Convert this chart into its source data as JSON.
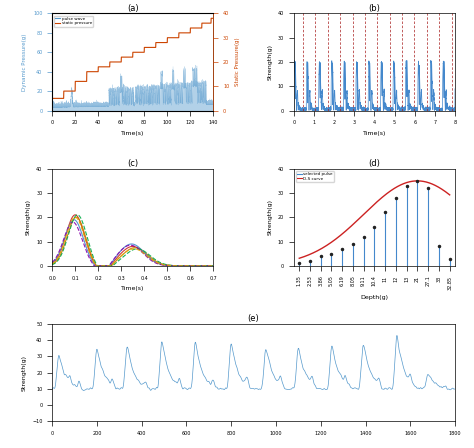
{
  "fig_width": 4.74,
  "fig_height": 4.48,
  "dpi": 100,
  "background": "#ffffff",
  "subplot_a": {
    "title": "(a)",
    "xlabel": "Time(s)",
    "ylabel_left": "Dynamic Pressure(g)",
    "ylabel_right": "Static Pressure(g)",
    "xlim": [
      0,
      140
    ],
    "ylim_left": [
      0,
      100
    ],
    "ylim_right": [
      0,
      40
    ],
    "yticks_left": [
      0,
      20,
      40,
      60,
      80,
      100
    ],
    "yticks_right": [
      0,
      10,
      20,
      30,
      40
    ],
    "xticks": [
      0,
      20,
      40,
      60,
      80,
      100,
      120,
      140
    ],
    "legend": [
      "pulse wave",
      "static pressure"
    ],
    "pulse_color": "#5599cc",
    "static_color": "#cc4400",
    "static_steps": [
      [
        0,
        5
      ],
      [
        10,
        8
      ],
      [
        20,
        12
      ],
      [
        30,
        16
      ],
      [
        40,
        18
      ],
      [
        50,
        20
      ],
      [
        60,
        22
      ],
      [
        70,
        24
      ],
      [
        80,
        26
      ],
      [
        90,
        28
      ],
      [
        100,
        30
      ],
      [
        110,
        32
      ],
      [
        120,
        34
      ],
      [
        130,
        36
      ],
      [
        138,
        38
      ]
    ],
    "spike_centers": [
      17,
      55,
      70,
      85,
      100,
      115,
      125
    ],
    "spike_heights": [
      20,
      35,
      38,
      42,
      40,
      38,
      35
    ]
  },
  "subplot_b": {
    "title": "(b)",
    "xlabel": "Time(s)",
    "ylabel": "Strength(g)",
    "xlim": [
      0,
      8
    ],
    "ylim": [
      0,
      40
    ],
    "yticks": [
      0,
      10,
      20,
      30,
      40
    ],
    "xticks": [
      0,
      1,
      2,
      3,
      4,
      5,
      6,
      7,
      8
    ],
    "signal_color": "#4488cc",
    "dashed_color": "#aa2222",
    "period": 0.615,
    "num_periods": 13,
    "first_marker": 0.45
  },
  "subplot_c": {
    "title": "(c)",
    "xlabel": "Time(s)",
    "ylabel": "Strength(g)",
    "xlim": [
      0,
      0.7
    ],
    "ylim": [
      0,
      40
    ],
    "yticks": [
      0,
      10,
      20,
      30,
      40
    ],
    "xticks": [
      0,
      0.1,
      0.2,
      0.3,
      0.4,
      0.5,
      0.6,
      0.7
    ],
    "colors": [
      "#cc2222",
      "#cc7700",
      "#4488cc",
      "#00aa44",
      "#8800aa",
      "#ddaa00"
    ],
    "linestyles": [
      "-",
      "-",
      "-",
      "--",
      "--",
      "--"
    ],
    "peak1_times": [
      0.1,
      0.105,
      0.095,
      0.11,
      0.09,
      0.1
    ],
    "peak1_amps": [
      21,
      20,
      19,
      21,
      18,
      20
    ],
    "peak2_times": [
      0.35,
      0.36,
      0.345,
      0.37,
      0.34,
      0.355
    ],
    "peak2_amps": [
      8,
      7.5,
      9,
      7,
      8.5,
      7
    ]
  },
  "subplot_d": {
    "title": "(d)",
    "xlabel": "Depth(g)",
    "ylabel": "Strength(g)",
    "ylim": [
      0,
      40
    ],
    "yticks": [
      0,
      10,
      20,
      30,
      40
    ],
    "legend": [
      "selected pulse",
      "D-S curve"
    ],
    "pulse_color": "#4488cc",
    "ds_color": "#cc2222",
    "depth_labels": [
      "1.35",
      "2.53",
      "3.86",
      "5.05",
      "6.19",
      "8.05",
      "9.11",
      "10.4",
      "11",
      "12",
      "13",
      "21",
      "27.1",
      "33",
      "32.85"
    ],
    "pulse_heights": [
      1,
      2,
      4,
      5,
      7,
      9,
      12,
      16,
      22,
      28,
      33,
      35,
      32,
      8,
      3
    ],
    "dot_heights": [
      1,
      2,
      4,
      5,
      7,
      9,
      12,
      16,
      22,
      28,
      33,
      35,
      32,
      8,
      3
    ]
  },
  "subplot_e": {
    "title": "(e)",
    "xlabel": "",
    "ylabel": "Strength(g)",
    "xlim": [
      0,
      1800
    ],
    "ylim": [
      -10,
      50
    ],
    "yticks": [
      -10,
      0,
      10,
      20,
      30,
      40,
      50
    ],
    "xticks": [
      0,
      200,
      400,
      600,
      800,
      1000,
      1200,
      1400,
      1600,
      1800
    ],
    "signal_color": "#5599cc",
    "peak_positions": [
      30,
      200,
      335,
      490,
      640,
      800,
      955,
      1100,
      1250,
      1390,
      1540,
      1680
    ],
    "peak_heights": [
      32,
      36,
      38,
      41,
      41,
      40,
      37,
      37,
      38,
      39,
      45,
      20
    ]
  }
}
